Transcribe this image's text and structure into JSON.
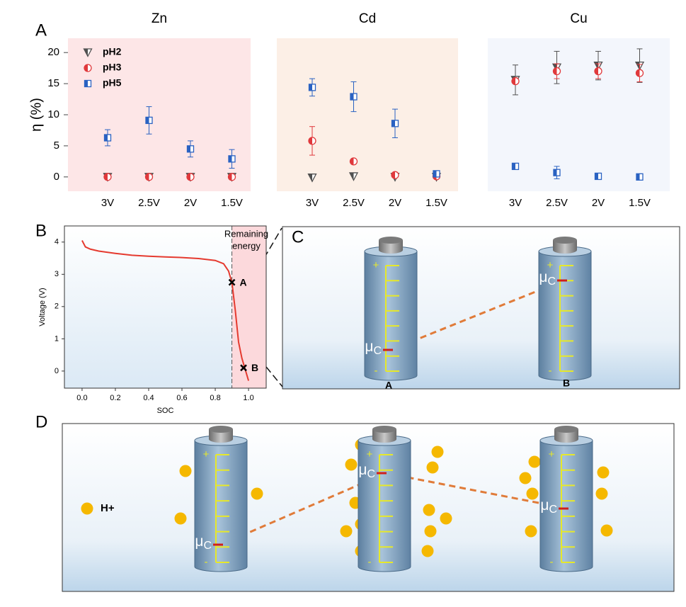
{
  "panel_labels": [
    "A",
    "B",
    "C",
    "D"
  ],
  "chart_data": [
    {
      "type": "scatter",
      "ylabel": "η (%)",
      "ylim": [
        -2.3,
        22.3
      ],
      "yticks": [
        0,
        5,
        10,
        15,
        20
      ],
      "legend": "upper left",
      "series": [
        {
          "name": "pH2",
          "color": "#505050",
          "marker": "triangle"
        },
        {
          "name": "pH3",
          "color": "#e0393c",
          "marker": "circle"
        },
        {
          "name": "pH5",
          "color": "#2a62c2",
          "marker": "square"
        }
      ],
      "groups": [
        {
          "title": "Zn",
          "background": "#fde6e7",
          "categories": [
            "3V",
            "2.5V",
            "2V",
            "1.5V"
          ],
          "values": [
            [
              0,
              0,
              0,
              0
            ],
            [
              0,
              0,
              0,
              0
            ],
            [
              6.3,
              9.1,
              4.5,
              2.9
            ]
          ],
          "errors": [
            [
              0,
              0,
              0,
              0
            ],
            [
              0,
              0,
              0,
              0
            ],
            [
              1.3,
              2.2,
              1.3,
              1.5
            ]
          ]
        },
        {
          "title": "Cd",
          "background": "#fcefe6",
          "categories": [
            "3V",
            "2.5V",
            "2V",
            "1.5V"
          ],
          "values": [
            [
              -0.1,
              0.1,
              0,
              0
            ],
            [
              5.8,
              2.5,
              0.3,
              0.1
            ],
            [
              14.4,
              12.9,
              8.6,
              0.5
            ]
          ],
          "errors": [
            [
              0,
              0,
              0,
              0
            ],
            [
              2.3,
              0,
              0,
              0
            ],
            [
              1.4,
              2.4,
              2.3,
              0.5
            ]
          ]
        },
        {
          "title": "Cu",
          "background": "#f3f6fc",
          "categories": [
            "3V",
            "2.5V",
            "2V",
            "1.5V"
          ],
          "values": [
            [
              15.6,
              17.6,
              17.9,
              17.9
            ],
            [
              15.4,
              17.0,
              17.0,
              16.7
            ],
            [
              1.7,
              0.7,
              0.1,
              0.0
            ]
          ],
          "errors": [
            [
              2.4,
              2.6,
              2.3,
              2.7
            ],
            [
              0,
              1.2,
              1.2,
              1.4
            ],
            [
              0,
              1.0,
              0,
              0
            ]
          ]
        }
      ]
    },
    {
      "type": "line",
      "xlabel": "SOC",
      "ylabel": "Voltage (V)",
      "xlim": [
        -0.106,
        1.106
      ],
      "ylim": [
        -0.53,
        4.5
      ],
      "xticks": [
        {
          "value": 0,
          "label": "0.0"
        },
        {
          "value": 0.2,
          "label": "0.2"
        },
        {
          "value": 0.4,
          "label": "0.4"
        },
        {
          "value": 0.6,
          "label": "0.6"
        },
        {
          "value": 0.8,
          "label": "0.8"
        },
        {
          "value": 1,
          "label": "1.0"
        }
      ],
      "yticks": [
        0,
        1,
        2,
        3,
        4
      ],
      "color": "#e53a2f",
      "region_start": 0.9,
      "region_color": "#fcd9dc",
      "x": [
        0,
        0.02,
        0.05,
        0.1,
        0.2,
        0.3,
        0.4,
        0.5,
        0.6,
        0.7,
        0.8,
        0.85,
        0.88,
        0.9,
        0.92,
        0.94,
        0.96,
        0.98,
        1.0
      ],
      "values": [
        4.05,
        3.85,
        3.78,
        3.72,
        3.65,
        3.59,
        3.56,
        3.54,
        3.52,
        3.49,
        3.43,
        3.33,
        3.1,
        2.75,
        1.9,
        0.9,
        0.4,
        0.05,
        -0.3
      ],
      "annotation": [
        "Remaining",
        "energy"
      ],
      "points": [
        {
          "label": "A",
          "x": 0.9,
          "y": 2.75
        },
        {
          "label": "B",
          "x": 0.97,
          "y": 0.1
        }
      ]
    }
  ],
  "diagram_c": {
    "batteries": [
      {
        "label": "A"
      },
      {
        "label": "B"
      }
    ]
  },
  "diagram_d": {
    "legend": "H+"
  },
  "symbols": {
    "mu": "μ",
    "sub": "C",
    "plus": "+",
    "minus": "-"
  }
}
